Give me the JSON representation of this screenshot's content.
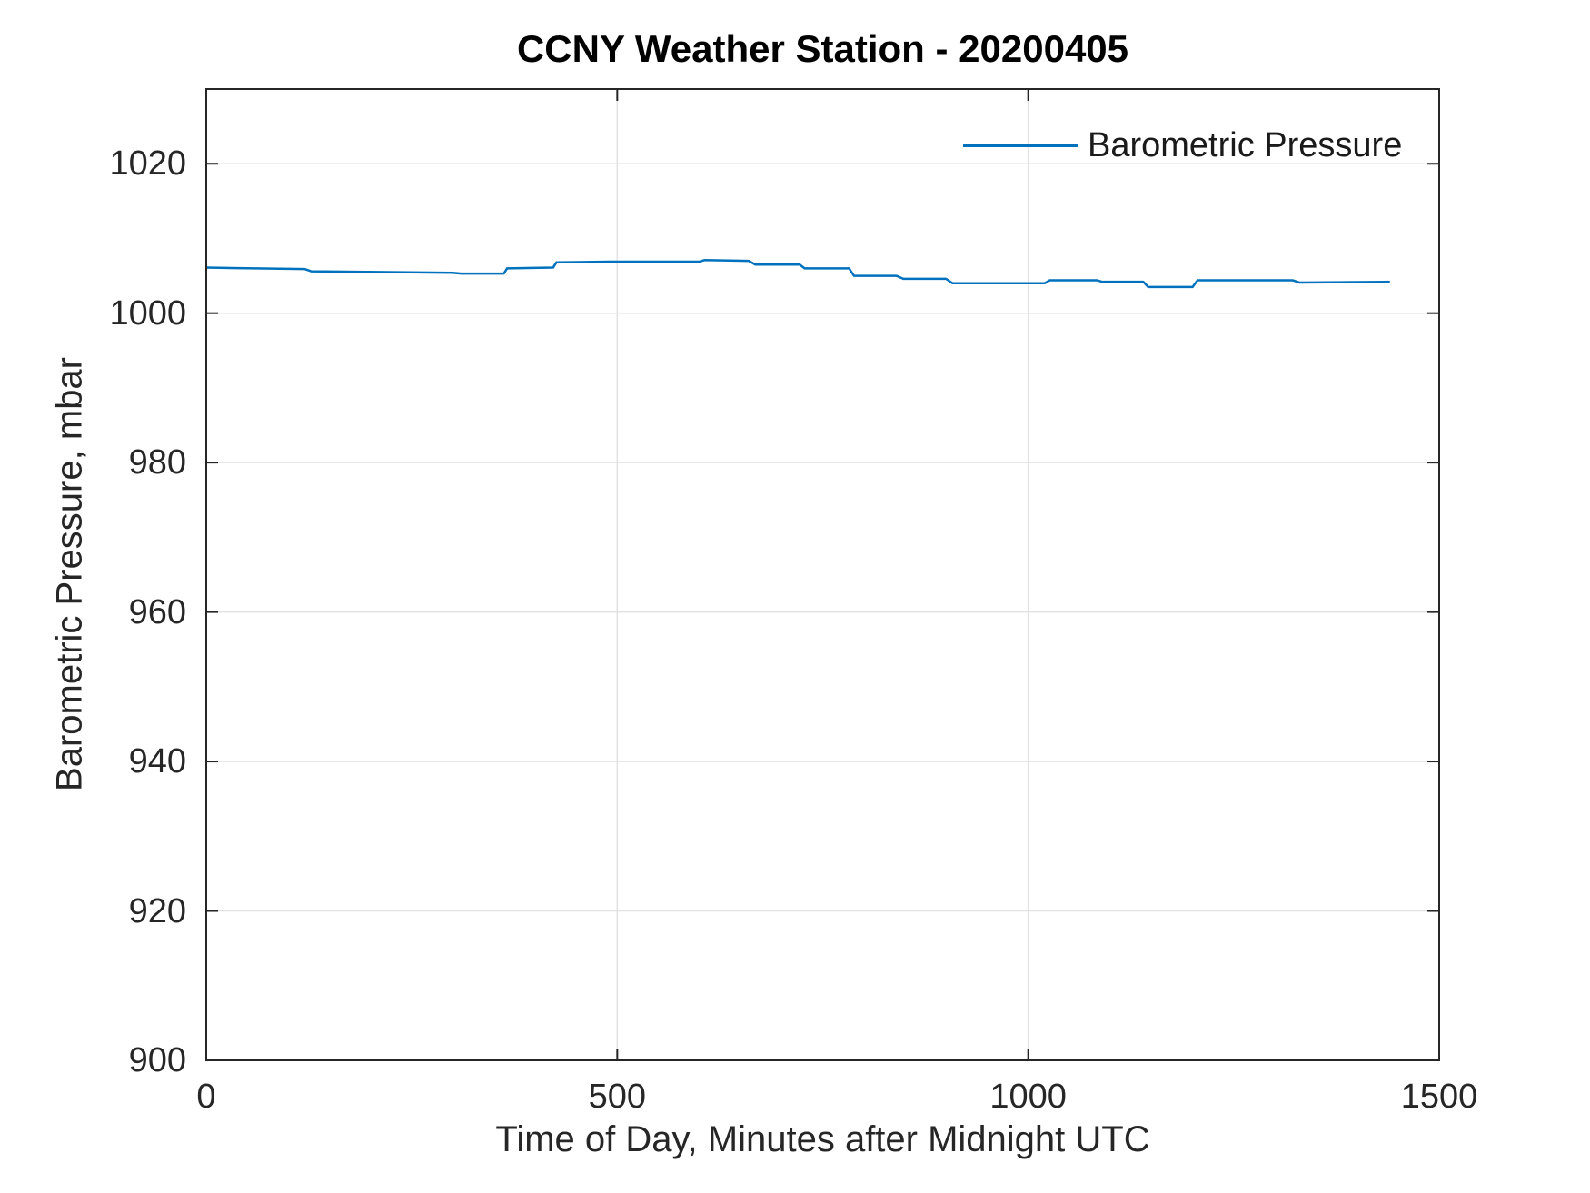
{
  "chart_data": {
    "type": "line",
    "title": "CCNY Weather Station - 20200405",
    "xlabel": "Time of Day, Minutes after Midnight UTC",
    "ylabel": "Barometric Pressure, mbar",
    "xlim": [
      0,
      1500
    ],
    "ylim": [
      900,
      1030
    ],
    "xticks": [
      0,
      500,
      1000,
      1500
    ],
    "yticks": [
      900,
      920,
      940,
      960,
      980,
      1000,
      1020
    ],
    "grid": true,
    "legend": {
      "entries": [
        "Barometric Pressure"
      ],
      "position": "northeast-inside",
      "box": false
    },
    "series": [
      {
        "name": "Barometric Pressure",
        "color": "#0072BD",
        "x_units": "minutes after midnight UTC",
        "y_units": "mbar",
        "points": [
          [
            0,
            1006.1
          ],
          [
            120,
            1005.9
          ],
          [
            128,
            1005.6
          ],
          [
            300,
            1005.4
          ],
          [
            310,
            1005.3
          ],
          [
            362,
            1005.3
          ],
          [
            366,
            1006.0
          ],
          [
            422,
            1006.1
          ],
          [
            426,
            1006.8
          ],
          [
            490,
            1006.9
          ],
          [
            600,
            1006.9
          ],
          [
            606,
            1007.1
          ],
          [
            660,
            1007.0
          ],
          [
            668,
            1006.5
          ],
          [
            722,
            1006.5
          ],
          [
            728,
            1006.0
          ],
          [
            782,
            1006.0
          ],
          [
            788,
            1005.0
          ],
          [
            840,
            1005.0
          ],
          [
            848,
            1004.6
          ],
          [
            900,
            1004.6
          ],
          [
            908,
            1004.0
          ],
          [
            1020,
            1004.0
          ],
          [
            1026,
            1004.4
          ],
          [
            1084,
            1004.4
          ],
          [
            1090,
            1004.2
          ],
          [
            1140,
            1004.2
          ],
          [
            1146,
            1003.5
          ],
          [
            1200,
            1003.5
          ],
          [
            1206,
            1004.4
          ],
          [
            1322,
            1004.4
          ],
          [
            1330,
            1004.1
          ],
          [
            1440,
            1004.2
          ]
        ]
      }
    ],
    "colors": {
      "line": "#0072BD",
      "axis": "#262626",
      "grid": "#e2e2e2",
      "text": "#262626",
      "title": "#000000",
      "background": "#ffffff"
    }
  }
}
